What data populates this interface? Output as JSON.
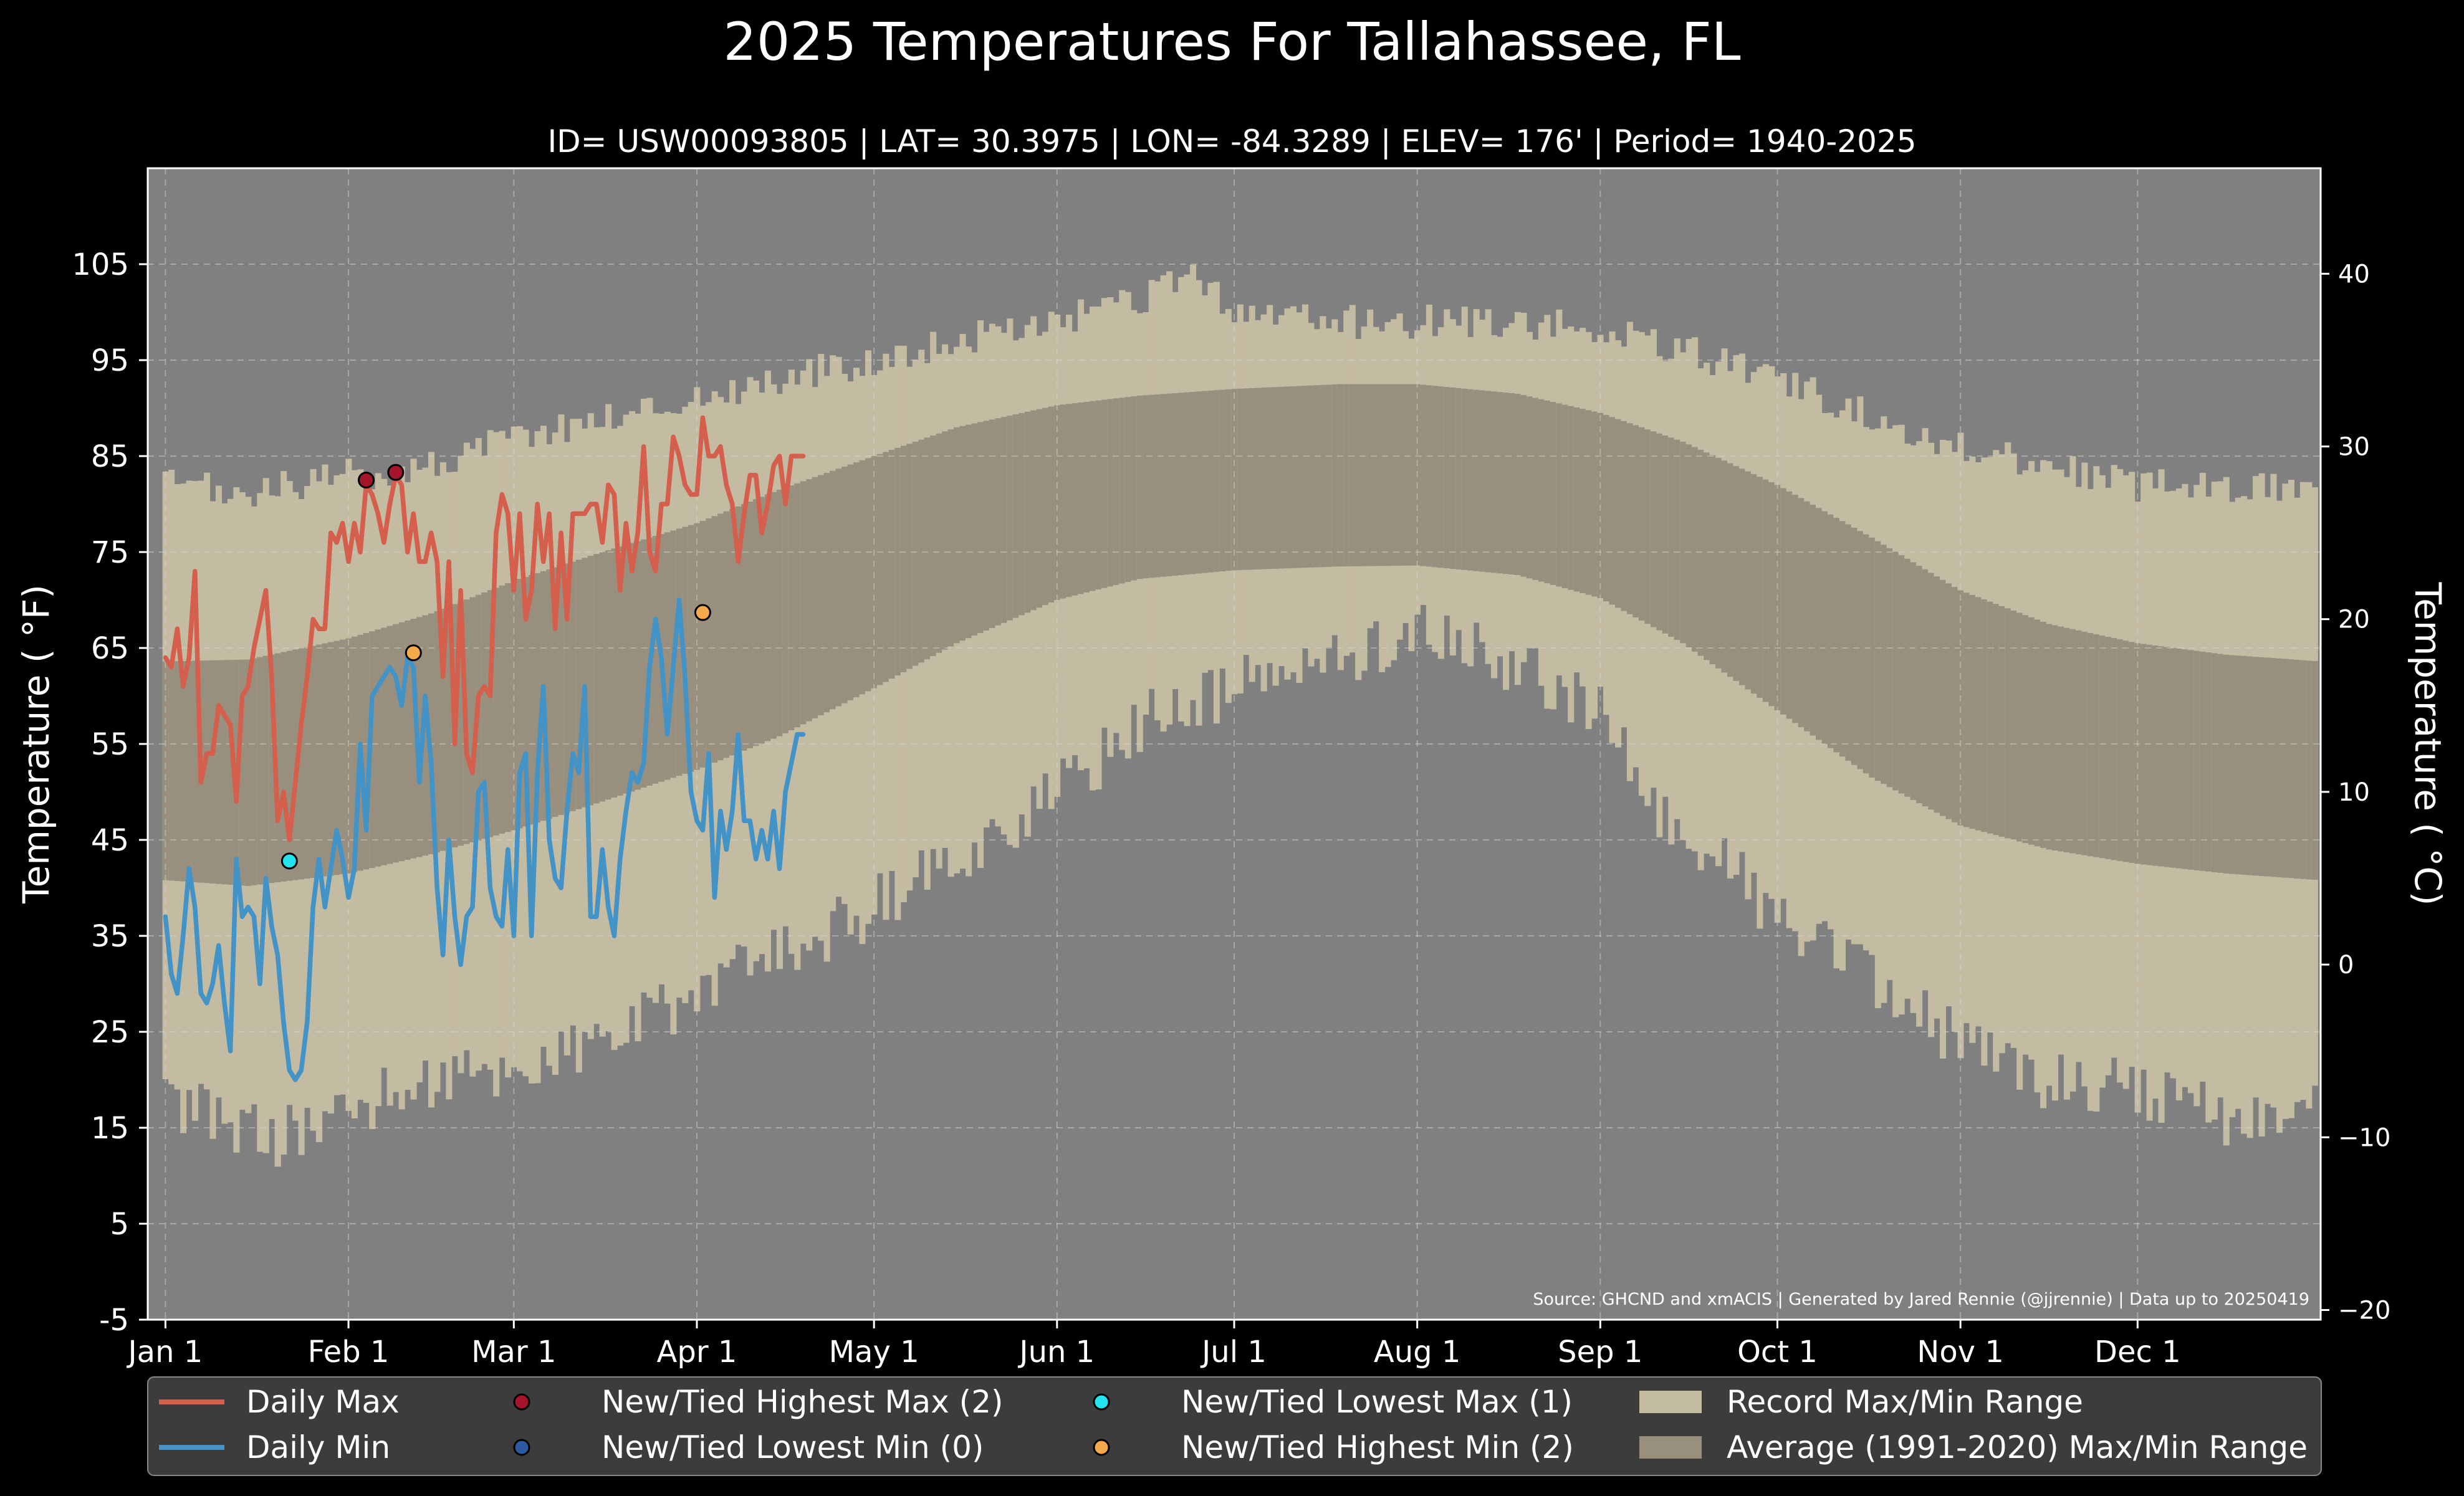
{
  "page": {
    "title": "2025 Temperatures For Tallahassee, FL",
    "subtitle": "ID= USW00093805 | LAT= 30.3975 | LON= -84.3289 | ELEV= 176' | Period= 1940-2025"
  },
  "colors": {
    "background": "#000000",
    "plot_background": "#808080",
    "record_band": "#c4bba3",
    "average_band": "#988f7e",
    "daily_max": "#d45f4c",
    "daily_min": "#4393c7",
    "highest_max_marker": "#a4142a",
    "lowest_min_marker": "#2b5aa0",
    "lowest_max_marker": "#22e3ee",
    "highest_min_marker": "#f6a94a",
    "legend_bg": "#3c3c3c"
  },
  "chart_data": {
    "type": "line",
    "title": "2025 Temperatures For Tallahassee, FL",
    "subtitle": "ID= USW00093805 | LAT= 30.3975 | LON= -84.3289 | ELEV= 176' | Period= 1940-2025",
    "xlabel": "",
    "ylabel": "Temperature ( °F)",
    "ylabel_right": "Temperature ( °C)",
    "x_unit": "day of year 2025",
    "xlim": [
      -2,
      366
    ],
    "ylim": [
      -5,
      115
    ],
    "ylim_right_c": [
      -20.56,
      46.11
    ],
    "grid": true,
    "legend_position": "bottom",
    "y_ticks": [
      -5,
      5,
      15,
      25,
      35,
      45,
      55,
      65,
      75,
      85,
      95,
      105
    ],
    "y_ticks_right": [
      -20,
      -10,
      0,
      10,
      20,
      30,
      40
    ],
    "x_ticks": [
      {
        "label": "Jan 1",
        "x": 1
      },
      {
        "label": "Feb 1",
        "x": 32
      },
      {
        "label": "Mar 1",
        "x": 60
      },
      {
        "label": "Apr 1",
        "x": 91
      },
      {
        "label": "May 1",
        "x": 121
      },
      {
        "label": "Jun 1",
        "x": 152
      },
      {
        "label": "Jul 1",
        "x": 182
      },
      {
        "label": "Aug 1",
        "x": 213
      },
      {
        "label": "Sep 1",
        "x": 244
      },
      {
        "label": "Oct 1",
        "x": 274
      },
      {
        "label": "Nov 1",
        "x": 305
      },
      {
        "label": "Dec 1",
        "x": 335
      }
    ],
    "record_max_anchors": [
      [
        1,
        82
      ],
      [
        15,
        81
      ],
      [
        32,
        83
      ],
      [
        46,
        84
      ],
      [
        60,
        87
      ],
      [
        75,
        89
      ],
      [
        91,
        91
      ],
      [
        105,
        93
      ],
      [
        121,
        95
      ],
      [
        135,
        97
      ],
      [
        152,
        99
      ],
      [
        166,
        101
      ],
      [
        175,
        104
      ],
      [
        182,
        100
      ],
      [
        200,
        99
      ],
      [
        213,
        99
      ],
      [
        230,
        99
      ],
      [
        244,
        98
      ],
      [
        258,
        96
      ],
      [
        274,
        93
      ],
      [
        290,
        89
      ],
      [
        305,
        86
      ],
      [
        320,
        84
      ],
      [
        335,
        82
      ],
      [
        350,
        82
      ],
      [
        366,
        82
      ]
    ],
    "record_min_anchors": [
      [
        1,
        18
      ],
      [
        10,
        16
      ],
      [
        20,
        14
      ],
      [
        32,
        17
      ],
      [
        46,
        20
      ],
      [
        60,
        21
      ],
      [
        75,
        24
      ],
      [
        91,
        29
      ],
      [
        105,
        33
      ],
      [
        121,
        38
      ],
      [
        135,
        43
      ],
      [
        152,
        50
      ],
      [
        166,
        57
      ],
      [
        182,
        61
      ],
      [
        200,
        64
      ],
      [
        213,
        67
      ],
      [
        230,
        63
      ],
      [
        244,
        58
      ],
      [
        255,
        47
      ],
      [
        265,
        43
      ],
      [
        274,
        37
      ],
      [
        288,
        31
      ],
      [
        305,
        24
      ],
      [
        320,
        20
      ],
      [
        335,
        19
      ],
      [
        350,
        16
      ],
      [
        366,
        17
      ]
    ],
    "average_max_anchors": [
      [
        1,
        63.6
      ],
      [
        15,
        63.8
      ],
      [
        32,
        66
      ],
      [
        46,
        68.6
      ],
      [
        60,
        72
      ],
      [
        75,
        75
      ],
      [
        91,
        78
      ],
      [
        105,
        81.5
      ],
      [
        121,
        85
      ],
      [
        135,
        88
      ],
      [
        152,
        90.3
      ],
      [
        166,
        91.3
      ],
      [
        182,
        92
      ],
      [
        200,
        92.5
      ],
      [
        213,
        92.5
      ],
      [
        230,
        91.5
      ],
      [
        244,
        89.5
      ],
      [
        258,
        86.5
      ],
      [
        274,
        82
      ],
      [
        290,
        76.5
      ],
      [
        305,
        71
      ],
      [
        320,
        67.5
      ],
      [
        335,
        65.5
      ],
      [
        350,
        64.3
      ],
      [
        366,
        63.6
      ]
    ],
    "average_min_anchors": [
      [
        1,
        40.8
      ],
      [
        15,
        40.2
      ],
      [
        32,
        41.5
      ],
      [
        46,
        43.5
      ],
      [
        60,
        46
      ],
      [
        75,
        49
      ],
      [
        91,
        52.3
      ],
      [
        105,
        55.8
      ],
      [
        121,
        60.8
      ],
      [
        135,
        65.5
      ],
      [
        152,
        70
      ],
      [
        166,
        72.2
      ],
      [
        182,
        73.1
      ],
      [
        200,
        73.5
      ],
      [
        213,
        73.6
      ],
      [
        230,
        72.6
      ],
      [
        244,
        70.2
      ],
      [
        258,
        65.5
      ],
      [
        274,
        58.5
      ],
      [
        290,
        51.5
      ],
      [
        305,
        46.5
      ],
      [
        320,
        44
      ],
      [
        335,
        42.5
      ],
      [
        350,
        41.5
      ],
      [
        366,
        40.8
      ]
    ],
    "series": [
      {
        "name": "Daily Max",
        "x": [
          1,
          2,
          3,
          4,
          5,
          6,
          7,
          8,
          9,
          10,
          11,
          12,
          13,
          14,
          15,
          16,
          17,
          18,
          19,
          20,
          21,
          22,
          23,
          24,
          25,
          26,
          27,
          28,
          29,
          30,
          31,
          32,
          33,
          34,
          35,
          36,
          37,
          38,
          39,
          40,
          41,
          42,
          43,
          44,
          45,
          46,
          47,
          48,
          49,
          50,
          51,
          52,
          53,
          54,
          55,
          56,
          57,
          58,
          59,
          60,
          61,
          62,
          63,
          64,
          65,
          66,
          67,
          68,
          69,
          70,
          71,
          72,
          73,
          74,
          75,
          76,
          77,
          78,
          79,
          80,
          81,
          82,
          83,
          84,
          85,
          86,
          87,
          88,
          89,
          90,
          91,
          92,
          93,
          94,
          95,
          96,
          97,
          98,
          99,
          100,
          101,
          102,
          103,
          104,
          105,
          106,
          107,
          108,
          109
        ],
        "values": [
          64,
          63,
          67,
          61,
          64,
          73,
          51,
          54,
          54,
          59,
          58,
          57,
          49,
          60,
          61,
          65,
          68,
          71,
          62,
          47,
          50,
          45,
          51,
          57,
          62,
          68,
          67,
          67,
          77,
          76,
          78,
          74,
          78,
          75,
          82,
          81,
          79,
          76,
          80,
          83,
          82,
          75,
          79,
          74,
          74,
          77,
          74,
          62,
          74,
          55,
          71,
          54,
          52,
          60,
          61,
          60,
          77,
          81,
          79,
          71,
          79,
          68,
          71,
          80,
          74,
          79,
          67,
          77,
          68,
          79,
          79,
          79,
          80,
          80,
          76,
          82,
          81,
          71,
          78,
          73,
          77,
          86,
          75,
          73,
          80,
          80,
          87,
          85,
          82,
          81,
          81,
          89,
          85,
          85,
          86,
          82,
          80,
          74,
          79,
          83,
          83,
          77,
          80,
          84,
          85,
          80,
          85,
          85,
          85
        ]
      },
      {
        "name": "Daily Min",
        "x": [
          1,
          2,
          3,
          4,
          5,
          6,
          7,
          8,
          9,
          10,
          11,
          12,
          13,
          14,
          15,
          16,
          17,
          18,
          19,
          20,
          21,
          22,
          23,
          24,
          25,
          26,
          27,
          28,
          29,
          30,
          31,
          32,
          33,
          34,
          35,
          36,
          37,
          38,
          39,
          40,
          41,
          42,
          43,
          44,
          45,
          46,
          47,
          48,
          49,
          50,
          51,
          52,
          53,
          54,
          55,
          56,
          57,
          58,
          59,
          60,
          61,
          62,
          63,
          64,
          65,
          66,
          67,
          68,
          69,
          70,
          71,
          72,
          73,
          74,
          75,
          76,
          77,
          78,
          79,
          80,
          81,
          82,
          83,
          84,
          85,
          86,
          87,
          88,
          89,
          90,
          91,
          92,
          93,
          94,
          95,
          96,
          97,
          98,
          99,
          100,
          101,
          102,
          103,
          104,
          105,
          106,
          107,
          108,
          109
        ],
        "values": [
          37,
          31,
          29,
          35,
          42,
          38,
          29,
          28,
          30,
          34,
          28,
          23,
          43,
          37,
          38,
          37,
          30,
          41,
          36,
          33,
          26,
          21,
          20,
          21,
          26,
          38,
          43,
          38,
          42,
          46,
          43,
          39,
          42,
          55,
          46,
          60,
          61,
          62,
          63,
          62,
          59,
          64,
          63,
          51,
          60,
          53,
          40,
          33,
          45,
          37,
          32,
          37,
          38,
          50,
          51,
          40,
          37,
          36,
          44,
          35,
          52,
          54,
          35,
          52,
          61,
          45,
          41,
          40,
          48,
          54,
          52,
          61,
          37,
          37,
          44,
          38,
          35,
          43,
          48,
          52,
          51,
          53,
          63,
          68,
          64,
          56,
          63,
          70,
          62,
          50,
          47,
          46,
          54,
          39,
          48,
          44,
          48,
          56,
          47,
          47,
          43,
          46,
          43,
          48,
          42,
          50,
          53,
          56,
          56
        ]
      }
    ],
    "record_markers": [
      {
        "name": "New/Tied Highest Max (2)",
        "points": [
          {
            "x": 35,
            "y": 82.5
          },
          {
            "x": 40,
            "y": 83.3
          }
        ]
      },
      {
        "name": "New/Tied Lowest Min (0)",
        "points": []
      },
      {
        "name": "New/Tied Lowest Max (1)",
        "points": [
          {
            "x": 22,
            "y": 42.8
          }
        ]
      },
      {
        "name": "New/Tied Highest Min (2)",
        "points": [
          {
            "x": 43,
            "y": 64.5
          },
          {
            "x": 92,
            "y": 68.7
          }
        ]
      }
    ],
    "legend": [
      {
        "label": "Daily Max",
        "kind": "line",
        "color": "daily_max"
      },
      {
        "label": "Daily Min",
        "kind": "line",
        "color": "daily_min"
      },
      {
        "label": "New/Tied Highest Max (2)",
        "kind": "marker",
        "color": "highest_max_marker"
      },
      {
        "label": "New/Tied Lowest Min (0)",
        "kind": "marker",
        "color": "lowest_min_marker"
      },
      {
        "label": "New/Tied Lowest Max (1)",
        "kind": "marker",
        "color": "lowest_max_marker"
      },
      {
        "label": "New/Tied Highest Min (2)",
        "kind": "marker",
        "color": "highest_min_marker"
      },
      {
        "label": "Record Max/Min Range",
        "kind": "patch",
        "color": "record_band"
      },
      {
        "label": "Average (1991-2020) Max/Min Range",
        "kind": "patch",
        "color": "average_band"
      }
    ],
    "source_note": "Source: GHCND and xmACIS | Generated by Jared Rennie (@jjrennie) | Data up to 20250419"
  }
}
